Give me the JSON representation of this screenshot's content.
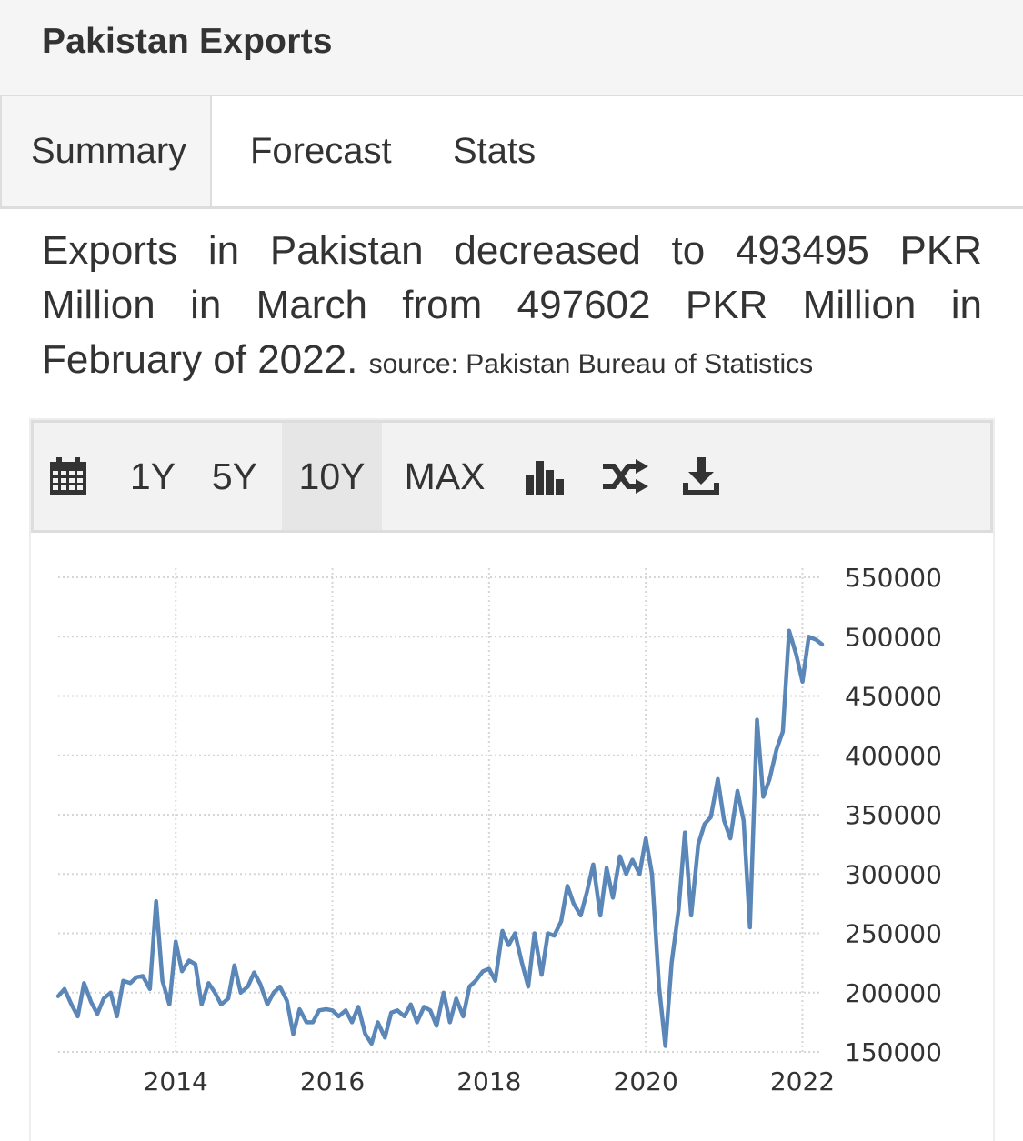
{
  "panel": {
    "title": "Pakistan Exports"
  },
  "tabs": [
    {
      "label": "Summary",
      "active": true
    },
    {
      "label": "Forecast",
      "active": false
    },
    {
      "label": "Stats",
      "active": false
    }
  ],
  "summary": {
    "text": "Exports in Pakistan decreased to 493495 PKR Million in March from 497602 PKR Million in February of 2022.",
    "source": "source: Pakistan Bureau of Statistics"
  },
  "toolbar": {
    "calendar_icon": "calendar-icon",
    "ranges": [
      {
        "label": "1Y",
        "active": false
      },
      {
        "label": "5Y",
        "active": false
      },
      {
        "label": "10Y",
        "active": true
      },
      {
        "label": "MAX",
        "active": false
      }
    ],
    "chart_type_icon": "bar-chart-icon",
    "compare_icon": "shuffle-icon",
    "download_icon": "download-icon"
  },
  "colors": {
    "line": "#5b87b8",
    "grid": "#d6d6d6",
    "tab_bg": "#f5f5f5",
    "border": "#dddddd"
  },
  "chart_data": {
    "type": "line",
    "title": "",
    "xlabel": "",
    "ylabel": "",
    "grid": true,
    "y_axis_side": "right",
    "ylim": [
      150000,
      550000
    ],
    "xlim": [
      2012.5,
      2022.25
    ],
    "x_ticks": [
      "2014",
      "2016",
      "2018",
      "2020",
      "2022"
    ],
    "y_ticks": [
      "550000",
      "500000",
      "450000",
      "400000",
      "350000",
      "300000",
      "250000",
      "200000",
      "150000"
    ],
    "series": [
      {
        "values": [
          [
            2012.5,
            197000
          ],
          [
            2012.58,
            203000
          ],
          [
            2012.67,
            190000
          ],
          [
            2012.75,
            180000
          ],
          [
            2012.83,
            208000
          ],
          [
            2012.92,
            192000
          ],
          [
            2013.0,
            182000
          ],
          [
            2013.08,
            195000
          ],
          [
            2013.17,
            200000
          ],
          [
            2013.25,
            180000
          ],
          [
            2013.33,
            210000
          ],
          [
            2013.42,
            208000
          ],
          [
            2013.5,
            213000
          ],
          [
            2013.58,
            214000
          ],
          [
            2013.67,
            203000
          ],
          [
            2013.75,
            277000
          ],
          [
            2013.83,
            210000
          ],
          [
            2013.92,
            190000
          ],
          [
            2014.0,
            243000
          ],
          [
            2014.08,
            218000
          ],
          [
            2014.17,
            227000
          ],
          [
            2014.25,
            224000
          ],
          [
            2014.33,
            190000
          ],
          [
            2014.42,
            208000
          ],
          [
            2014.5,
            200000
          ],
          [
            2014.58,
            190000
          ],
          [
            2014.67,
            195000
          ],
          [
            2014.75,
            223000
          ],
          [
            2014.83,
            200000
          ],
          [
            2014.92,
            205000
          ],
          [
            2015.0,
            217000
          ],
          [
            2015.08,
            207000
          ],
          [
            2015.17,
            190000
          ],
          [
            2015.25,
            200000
          ],
          [
            2015.33,
            205000
          ],
          [
            2015.42,
            193000
          ],
          [
            2015.5,
            165000
          ],
          [
            2015.58,
            186000
          ],
          [
            2015.67,
            175000
          ],
          [
            2015.75,
            175000
          ],
          [
            2015.83,
            185000
          ],
          [
            2015.92,
            186000
          ],
          [
            2016.0,
            185000
          ],
          [
            2016.08,
            180000
          ],
          [
            2016.17,
            185000
          ],
          [
            2016.25,
            175000
          ],
          [
            2016.33,
            188000
          ],
          [
            2016.42,
            165000
          ],
          [
            2016.5,
            157000
          ],
          [
            2016.58,
            175000
          ],
          [
            2016.67,
            162000
          ],
          [
            2016.75,
            183000
          ],
          [
            2016.83,
            185000
          ],
          [
            2016.92,
            180000
          ],
          [
            2017.0,
            190000
          ],
          [
            2017.08,
            175000
          ],
          [
            2017.17,
            188000
          ],
          [
            2017.25,
            185000
          ],
          [
            2017.33,
            172000
          ],
          [
            2017.42,
            200000
          ],
          [
            2017.5,
            175000
          ],
          [
            2017.58,
            195000
          ],
          [
            2017.67,
            180000
          ],
          [
            2017.75,
            205000
          ],
          [
            2017.83,
            210000
          ],
          [
            2017.92,
            218000
          ],
          [
            2018.0,
            220000
          ],
          [
            2018.08,
            210000
          ],
          [
            2018.17,
            252000
          ],
          [
            2018.25,
            240000
          ],
          [
            2018.33,
            250000
          ],
          [
            2018.42,
            225000
          ],
          [
            2018.5,
            205000
          ],
          [
            2018.58,
            250000
          ],
          [
            2018.67,
            215000
          ],
          [
            2018.75,
            250000
          ],
          [
            2018.83,
            248000
          ],
          [
            2018.92,
            260000
          ],
          [
            2019.0,
            290000
          ],
          [
            2019.08,
            275000
          ],
          [
            2019.17,
            265000
          ],
          [
            2019.25,
            285000
          ],
          [
            2019.33,
            308000
          ],
          [
            2019.42,
            265000
          ],
          [
            2019.5,
            305000
          ],
          [
            2019.58,
            280000
          ],
          [
            2019.67,
            315000
          ],
          [
            2019.75,
            300000
          ],
          [
            2019.83,
            312000
          ],
          [
            2019.92,
            300000
          ],
          [
            2020.0,
            330000
          ],
          [
            2020.08,
            300000
          ],
          [
            2020.17,
            205000
          ],
          [
            2020.25,
            155000
          ],
          [
            2020.33,
            225000
          ],
          [
            2020.42,
            270000
          ],
          [
            2020.5,
            335000
          ],
          [
            2020.58,
            265000
          ],
          [
            2020.67,
            325000
          ],
          [
            2020.75,
            342000
          ],
          [
            2020.83,
            348000
          ],
          [
            2020.92,
            380000
          ],
          [
            2021.0,
            345000
          ],
          [
            2021.08,
            330000
          ],
          [
            2021.17,
            370000
          ],
          [
            2021.25,
            345000
          ],
          [
            2021.33,
            255000
          ],
          [
            2021.42,
            430000
          ],
          [
            2021.5,
            365000
          ],
          [
            2021.58,
            380000
          ],
          [
            2021.67,
            405000
          ],
          [
            2021.75,
            420000
          ],
          [
            2021.83,
            505000
          ],
          [
            2021.92,
            485000
          ],
          [
            2022.0,
            462000
          ],
          [
            2022.08,
            500000
          ],
          [
            2022.17,
            497602
          ],
          [
            2022.25,
            493495
          ]
        ]
      }
    ]
  }
}
